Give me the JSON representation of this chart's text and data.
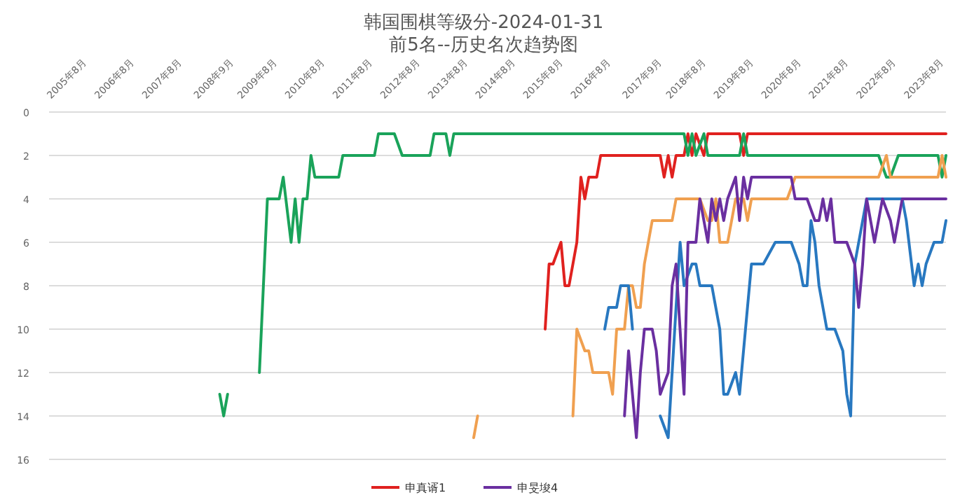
{
  "chart_data": {
    "type": "line",
    "title": "韩国围棋等级分-2024-01-31",
    "subtitle": "前5名--历史名次趋势图",
    "xlim": [
      "2005-03",
      "2024-01"
    ],
    "ylim": [
      16,
      0
    ],
    "yticks": [
      0,
      2,
      4,
      6,
      8,
      10,
      12,
      14,
      16
    ],
    "xticks": [
      {
        "value": "2005-08",
        "label": "2005年8月"
      },
      {
        "value": "2006-08",
        "label": "2006年8月"
      },
      {
        "value": "2007-08",
        "label": "2007年8月"
      },
      {
        "value": "2008-09",
        "label": "2008年9月"
      },
      {
        "value": "2009-08",
        "label": "2009年8月"
      },
      {
        "value": "2010-08",
        "label": "2010年8月"
      },
      {
        "value": "2011-08",
        "label": "2011年8月"
      },
      {
        "value": "2012-08",
        "label": "2012年8月"
      },
      {
        "value": "2013-08",
        "label": "2013年8月"
      },
      {
        "value": "2014-08",
        "label": "2014年8月"
      },
      {
        "value": "2015-08",
        "label": "2015年8月"
      },
      {
        "value": "2016-08",
        "label": "2016年8月"
      },
      {
        "value": "2017-09",
        "label": "2017年9月"
      },
      {
        "value": "2018-08",
        "label": "2018年8月"
      },
      {
        "value": "2019-08",
        "label": "2019年8月"
      },
      {
        "value": "2020-08",
        "label": "2020年8月"
      },
      {
        "value": "2021-08",
        "label": "2021年8月"
      },
      {
        "value": "2022-08",
        "label": "2022年8月"
      },
      {
        "value": "2023-08",
        "label": "2023年8月"
      }
    ],
    "grid": "y",
    "legend": "bottom",
    "line_style": "solid",
    "series": [
      {
        "name": "申真谞1",
        "color": "#e0211f",
        "x": [
          "2015-08",
          "2015-09",
          "2015-10",
          "2015-12",
          "2016-01",
          "2016-02",
          "2016-04",
          "2016-05",
          "2016-06",
          "2016-07",
          "2016-09",
          "2016-10",
          "2018-01",
          "2018-02",
          "2018-03",
          "2018-04",
          "2018-05",
          "2018-07",
          "2018-08",
          "2018-09",
          "2018-10",
          "2018-12",
          "2019-01",
          "2019-04",
          "2019-09",
          "2019-10",
          "2019-11",
          "2024-01"
        ],
        "values": [
          10,
          7,
          7,
          6,
          8,
          8,
          6,
          3,
          4,
          3,
          3,
          2,
          2,
          3,
          2,
          3,
          2,
          2,
          1,
          2,
          1,
          2,
          1,
          1,
          1,
          2,
          1,
          1
        ]
      },
      {
        "color": "#1aa35a",
        "x": [
          "2008-10",
          "2008-11",
          "2008-12",
          "2009-03",
          "2009-08",
          "2009-10",
          "2010-01",
          "2010-02",
          "2010-04",
          "2010-05",
          "2010-06",
          "2010-07",
          "2010-08",
          "2010-09",
          "2010-10",
          "2011-04",
          "2011-05",
          "2012-01",
          "2012-02",
          "2012-06",
          "2012-08",
          "2013-03",
          "2013-04",
          "2013-07",
          "2013-08",
          "2013-09",
          "2018-07",
          "2018-08",
          "2018-09",
          "2018-10",
          "2018-12",
          "2019-01",
          "2019-04",
          "2019-09",
          "2019-10",
          "2019-11",
          "2022-08",
          "2022-10",
          "2022-11",
          "2023-01",
          "2023-11",
          "2023-12",
          "2024-01"
        ],
        "values": [
          13,
          14,
          13,
          null,
          12,
          4,
          4,
          3,
          6,
          4,
          6,
          4,
          4,
          2,
          3,
          3,
          2,
          2,
          1,
          1,
          2,
          2,
          1,
          1,
          2,
          1,
          1,
          2,
          1,
          2,
          1,
          2,
          2,
          2,
          1,
          2,
          2,
          3,
          3,
          2,
          2,
          3,
          2
        ]
      },
      {
        "color": "#f0a050",
        "x": [
          "2014-02",
          "2014-03",
          "2015-01",
          "2016-03",
          "2016-04",
          "2016-06",
          "2016-07",
          "2016-08",
          "2016-11",
          "2016-12",
          "2017-01",
          "2017-02",
          "2017-04",
          "2017-05",
          "2017-06",
          "2017-07",
          "2017-08",
          "2017-09",
          "2017-11",
          "2018-04",
          "2018-05",
          "2018-11",
          "2019-01",
          "2019-02",
          "2019-03",
          "2019-04",
          "2019-06",
          "2019-08",
          "2019-10",
          "2019-11",
          "2019-12",
          "2020-09",
          "2020-11",
          "2022-08",
          "2022-10",
          "2022-11",
          "2023-11",
          "2023-12",
          "2024-01"
        ],
        "values": [
          15,
          14,
          null,
          14,
          10,
          11,
          11,
          12,
          12,
          12,
          13,
          10,
          10,
          8,
          8,
          9,
          9,
          7,
          5,
          5,
          4,
          4,
          5,
          5,
          4,
          6,
          6,
          4,
          4,
          5,
          4,
          4,
          3,
          3,
          2,
          3,
          3,
          2,
          3
        ]
      },
      {
        "color": "#2878c0",
        "x": [
          "2016-11",
          "2016-12",
          "2017-02",
          "2017-03",
          "2017-05",
          "2017-06",
          "2017-10",
          "2018-01",
          "2018-03",
          "2018-04",
          "2018-05",
          "2018-06",
          "2018-07",
          "2018-09",
          "2018-10",
          "2018-11",
          "2019-02",
          "2019-04",
          "2019-05",
          "2019-06",
          "2019-08",
          "2019-09",
          "2019-12",
          "2020-03",
          "2020-06",
          "2020-10",
          "2020-12",
          "2021-01",
          "2021-02",
          "2021-03",
          "2021-04",
          "2021-05",
          "2021-07",
          "2021-09",
          "2021-11",
          "2021-12",
          "2022-01",
          "2022-02",
          "2022-05",
          "2023-02",
          "2023-03",
          "2023-05",
          "2023-06",
          "2023-07",
          "2023-08",
          "2023-10",
          "2023-12",
          "2024-01"
        ],
        "values": [
          10,
          9,
          9,
          8,
          8,
          10,
          null,
          14,
          15,
          12,
          9,
          6,
          8,
          7,
          7,
          8,
          8,
          10,
          13,
          13,
          12,
          13,
          7,
          7,
          6,
          6,
          7,
          8,
          8,
          5,
          6,
          8,
          10,
          10,
          11,
          13,
          14,
          7,
          4,
          4,
          5,
          8,
          7,
          8,
          7,
          6,
          6,
          5
        ]
      },
      {
        "name": "申旻埈4",
        "color": "#6a2fa0",
        "x": [
          "2017-04",
          "2017-05",
          "2017-07",
          "2017-08",
          "2017-09",
          "2017-11",
          "2017-12",
          "2018-01",
          "2018-03",
          "2018-04",
          "2018-05",
          "2018-07",
          "2018-08",
          "2018-10",
          "2018-11",
          "2019-01",
          "2019-02",
          "2019-03",
          "2019-04",
          "2019-05",
          "2019-06",
          "2019-08",
          "2019-09",
          "2019-10",
          "2019-11",
          "2019-12",
          "2020-10",
          "2020-11",
          "2021-02",
          "2021-04",
          "2021-05",
          "2021-06",
          "2021-07",
          "2021-08",
          "2021-09",
          "2021-12",
          "2022-02",
          "2022-03",
          "2022-04",
          "2022-05",
          "2022-07",
          "2022-09",
          "2022-11",
          "2022-12",
          "2023-02",
          "2024-01"
        ],
        "values": [
          14,
          11,
          15,
          12,
          10,
          10,
          11,
          13,
          12,
          8,
          7,
          13,
          6,
          6,
          4,
          6,
          4,
          5,
          4,
          5,
          4,
          3,
          5,
          3,
          4,
          3,
          3,
          4,
          4,
          5,
          5,
          4,
          5,
          4,
          6,
          6,
          7,
          9,
          7,
          4,
          6,
          4,
          5,
          6,
          4,
          4
        ]
      }
    ]
  }
}
